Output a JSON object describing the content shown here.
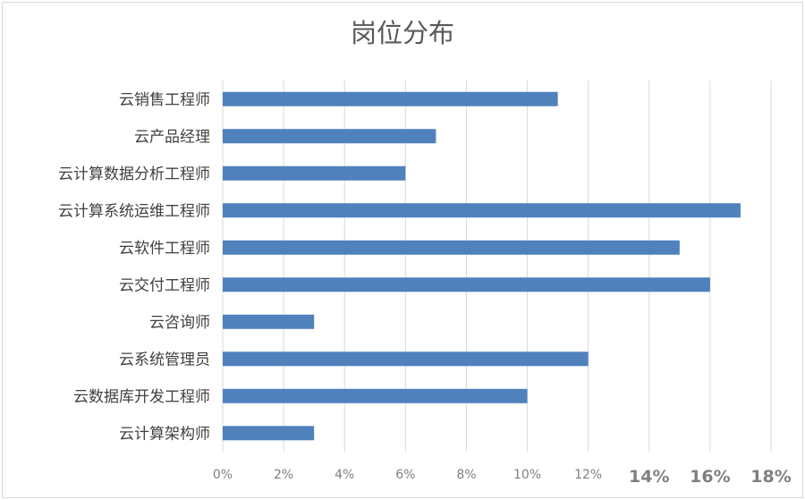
{
  "chart_data": {
    "type": "bar",
    "orientation": "horizontal",
    "title": "岗位分布",
    "categories": [
      "云销售工程师",
      "云产品经理",
      "云计算数据分析工程师",
      "云计算系统运维工程师",
      "云软件工程师",
      "云交付工程师",
      "云咨询师",
      "云系统管理员",
      "云数据库开发工程师",
      "云计算架构师"
    ],
    "values": [
      11,
      7,
      6,
      17,
      15,
      16,
      3,
      12,
      10,
      3
    ],
    "xlim": [
      0,
      18
    ],
    "xticks": [
      "0%",
      "2%",
      "4%",
      "6%",
      "8%",
      "10%",
      "12%",
      "14%",
      "16%",
      "18%"
    ],
    "xlabel": "",
    "ylabel": "",
    "grid": "vertical",
    "legend": "none",
    "bar_color": "#4f81bd"
  }
}
